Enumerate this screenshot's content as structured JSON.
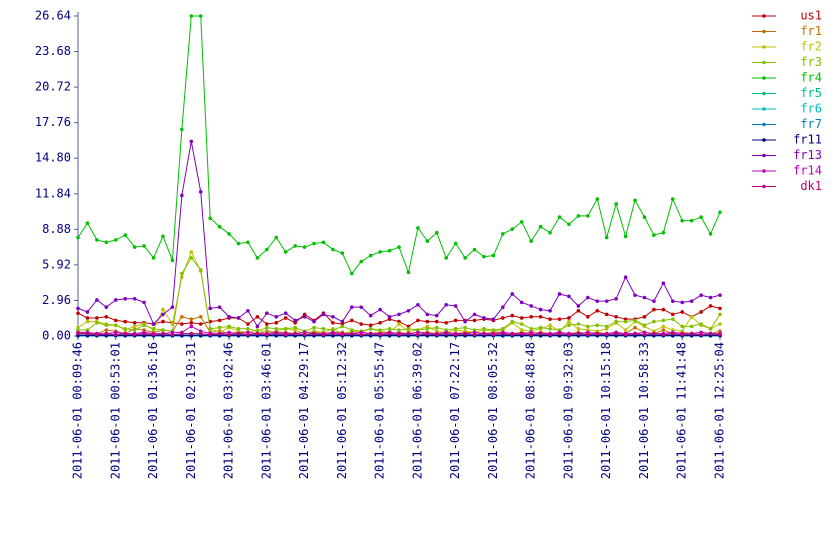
{
  "chart_data": {
    "type": "line",
    "categories": [
      "2011-06-01 00:09:46",
      null,
      null,
      null,
      "2011-06-01 00:53:01",
      null,
      null,
      null,
      "2011-06-01 01:36:16",
      null,
      null,
      null,
      "2011-06-01 02:19:31",
      null,
      null,
      null,
      "2011-06-01 03:02:46",
      null,
      null,
      null,
      "2011-06-01 03:46:01",
      null,
      null,
      null,
      "2011-06-01 04:29:17",
      null,
      null,
      null,
      "2011-06-01 05:12:32",
      null,
      null,
      null,
      "2011-06-01 05:55:47",
      null,
      null,
      null,
      "2011-06-01 06:39:02",
      null,
      null,
      null,
      "2011-06-01 07:22:17",
      null,
      null,
      null,
      "2011-06-01 08:05:32",
      null,
      null,
      null,
      "2011-06-01 08:48:48",
      null,
      null,
      null,
      "2011-06-01 09:32:03",
      null,
      null,
      null,
      "2011-06-01 10:15:18",
      null,
      null,
      null,
      "2011-06-01 10:58:33",
      null,
      null,
      null,
      "2011-06-01 11:41:48",
      null,
      null,
      null,
      "2011-06-01 12:25:04"
    ],
    "ylim": [
      0,
      26.64
    ],
    "yticks": [
      {
        "value": 0,
        "label": "0.00"
      },
      2.96,
      5.92,
      8.88,
      11.84,
      {
        "value": 14.8,
        "label": "14.80"
      },
      17.76,
      20.72,
      23.68,
      26.64
    ],
    "grid": false,
    "legend": "right",
    "series": [
      {
        "name": "us1",
        "color": "#c00000",
        "values": [
          1.9,
          1.5,
          1.5,
          1.6,
          1.3,
          1.2,
          1.1,
          1.1,
          1.0,
          1.2,
          1.1,
          1.0,
          1.1,
          1.0,
          1.2,
          1.3,
          1.5,
          1.5,
          1.0,
          1.6,
          1.0,
          1.1,
          1.5,
          1.1,
          1.8,
          1.3,
          1.9,
          1.1,
          1.0,
          1.3,
          1.0,
          0.9,
          1.1,
          1.4,
          1.2,
          0.8,
          1.3,
          1.2,
          1.2,
          1.1,
          1.3,
          1.3,
          1.3,
          1.4,
          1.3,
          1.5,
          1.7,
          1.5,
          1.6,
          1.6,
          1.4,
          1.4,
          1.5,
          2.1,
          1.6,
          2.1,
          1.8,
          1.6,
          1.4,
          1.4,
          1.6,
          2.2,
          2.2,
          1.8,
          2.0,
          1.6,
          2.0,
          2.5,
          2.3
        ]
      },
      {
        "name": "fr1",
        "color": "#c07000",
        "values": [
          0.3,
          0.2,
          0.2,
          0.5,
          0.4,
          0.2,
          0.6,
          0.5,
          0.3,
          0.5,
          0.4,
          1.6,
          1.4,
          1.6,
          0.3,
          0.4,
          0.2,
          0.3,
          0.3,
          0.2,
          0.4,
          0.3,
          0.3,
          0.2,
          0.3,
          0.3,
          0.2,
          0.3,
          0.3,
          0.2,
          0.3,
          0.2,
          0.3,
          0.2,
          0.3,
          0.2,
          0.3,
          0.3,
          0.2,
          0.3,
          0.2,
          0.3,
          0.3,
          0.2,
          0.3,
          0.3,
          0.2,
          0.3,
          0.2,
          0.3,
          0.2,
          0.3,
          0.2,
          0.3,
          0.2,
          0.3,
          0.2,
          0.3,
          0.2,
          0.7,
          0.3,
          0.2,
          0.5,
          0.2,
          0.3,
          0.2,
          0.3,
          0.2,
          0.4
        ]
      },
      {
        "name": "fr2",
        "color": "#c0c000",
        "values": [
          0.7,
          1.2,
          1.2,
          1.0,
          0.9,
          0.5,
          0.8,
          1.0,
          0.5,
          2.2,
          1.0,
          4.9,
          7.0,
          5.4,
          0.6,
          0.3,
          0.7,
          0.4,
          0.3,
          0.5,
          0.3,
          0.4,
          0.6,
          0.5,
          0.2,
          0.4,
          0.3,
          0.6,
          0.2,
          0.4,
          0.3,
          0.6,
          0.4,
          0.3,
          1.0,
          0.4,
          0.5,
          0.8,
          0.4,
          0.3,
          0.5,
          0.4,
          0.3,
          0.5,
          0.4,
          0.5,
          1.1,
          0.5,
          0.4,
          0.6,
          0.9,
          0.4,
          1.2,
          0.6,
          0.5,
          0.4,
          0.6,
          1.1,
          0.5,
          1.2,
          0.8,
          0.4,
          0.8,
          0.5,
          0.4,
          1.6,
          0.9,
          0.6,
          1.0
        ]
      },
      {
        "name": "fr3",
        "color": "#80c000",
        "values": [
          0.5,
          0.5,
          1.1,
          0.9,
          0.9,
          0.6,
          0.5,
          0.9,
          0.6,
          0.5,
          0.4,
          5.2,
          6.5,
          5.5,
          0.6,
          0.7,
          0.8,
          0.6,
          0.6,
          0.4,
          0.7,
          0.6,
          0.6,
          0.7,
          0.4,
          0.7,
          0.6,
          0.5,
          0.8,
          0.5,
          0.4,
          0.6,
          0.5,
          0.6,
          0.5,
          0.6,
          0.5,
          0.6,
          0.7,
          0.5,
          0.6,
          0.7,
          0.5,
          0.6,
          0.5,
          0.6,
          1.2,
          1.0,
          0.6,
          0.7,
          0.6,
          0.5,
          0.9,
          1.0,
          0.8,
          0.9,
          0.8,
          1.2,
          1.2,
          1.3,
          0.9,
          1.2,
          1.3,
          1.4,
          0.8,
          0.8,
          1.0,
          0.6,
          1.8
        ]
      },
      {
        "name": "fr4",
        "color": "#00c000",
        "values": [
          8.2,
          9.4,
          8.0,
          7.8,
          8.0,
          8.4,
          7.4,
          7.5,
          6.5,
          8.3,
          6.3,
          17.2,
          26.64,
          26.64,
          9.8,
          9.1,
          8.5,
          7.7,
          7.8,
          6.5,
          7.2,
          8.2,
          7.0,
          7.5,
          7.4,
          7.7,
          7.8,
          7.2,
          6.9,
          5.2,
          6.2,
          6.7,
          7.0,
          7.1,
          7.4,
          5.3,
          9.0,
          7.9,
          8.6,
          6.5,
          7.7,
          6.5,
          7.2,
          6.6,
          6.7,
          8.5,
          8.9,
          9.5,
          7.9,
          9.1,
          8.6,
          9.9,
          9.3,
          10.0,
          10.0,
          11.4,
          8.2,
          11.0,
          8.3,
          11.3,
          9.9,
          8.4,
          8.6,
          11.4,
          9.6,
          9.6,
          9.9,
          8.5,
          10.3
        ]
      },
      {
        "name": "fr5",
        "color": "#00c080",
        "values": [
          0.1,
          0.1,
          0.1,
          0.1,
          0.1,
          0.1,
          0.1,
          0.1,
          0.1,
          0.1,
          0.1,
          0.1,
          0.1,
          0.1,
          0.1,
          0.1,
          0.1,
          0.1,
          0.1,
          0.1,
          0.1,
          0.1,
          0.1,
          0.1,
          0.1,
          0.1,
          0.1,
          0.1,
          0.1,
          0.1,
          0.1,
          0.1,
          0.1,
          0.1,
          0.1,
          0.1,
          0.1,
          0.1,
          0.1,
          0.1,
          0.1,
          0.1,
          0.1,
          0.1,
          0.1,
          0.1,
          0.1,
          0.1,
          0.1,
          0.1,
          0.1,
          0.1,
          0.1,
          0.1,
          0.1,
          0.1,
          0.1,
          0.1,
          0.1,
          0.1,
          0.1,
          0.1,
          0.1,
          0.1,
          0.1,
          0.1,
          0.1,
          0.1,
          0.1
        ]
      },
      {
        "name": "fr6",
        "color": "#00c0c0",
        "values": [
          0.05,
          0.05,
          0.05,
          0.05,
          0.05,
          0.05,
          0.05,
          0.05,
          0.05,
          0.05,
          0.05,
          0.05,
          0.05,
          0.05,
          0.05,
          0.05,
          0.05,
          0.05,
          0.05,
          0.05,
          0.05,
          0.05,
          0.05,
          0.05,
          0.05,
          0.05,
          0.05,
          0.05,
          0.05,
          0.05,
          0.05,
          0.05,
          0.05,
          0.05,
          0.05,
          0.05,
          0.05,
          0.05,
          0.05,
          0.05,
          0.05,
          0.05,
          0.05,
          0.05,
          0.05,
          0.05,
          0.05,
          0.05,
          0.05,
          0.05,
          0.05,
          0.05,
          0.05,
          0.05,
          0.05,
          0.05,
          0.05,
          0.05,
          0.05,
          0.05,
          0.05,
          0.05,
          0.05,
          0.05,
          0.05,
          0.05,
          0.05,
          0.05,
          0.05
        ]
      },
      {
        "name": "fr7",
        "color": "#0080c0",
        "values": [
          0,
          0,
          0,
          0,
          0,
          0,
          0,
          0,
          0,
          0,
          0,
          0,
          0,
          0,
          0,
          0,
          0,
          0,
          0,
          0,
          0,
          0,
          0,
          0,
          0,
          0,
          0,
          0,
          0,
          0,
          0,
          0,
          0,
          0,
          0,
          0,
          0,
          0,
          0,
          0,
          0,
          0,
          0,
          0,
          0,
          0,
          0,
          0,
          0,
          0,
          0,
          0,
          0,
          0,
          0,
          0,
          0,
          0,
          0,
          0,
          0,
          0,
          0,
          0,
          0,
          0,
          0,
          0,
          0
        ]
      },
      {
        "name": "fr11",
        "color": "#000080",
        "values": [
          0.05,
          0.05,
          0.05,
          0.05,
          0.05,
          0.05,
          0.05,
          0.05,
          0.05,
          0.05,
          0.05,
          0.05,
          0.05,
          0.05,
          0.05,
          0.05,
          0.05,
          0.05,
          0.05,
          0.05,
          0.05,
          0.05,
          0.05,
          0.05,
          0.05,
          0.05,
          0.05,
          0.05,
          0.05,
          0.05,
          0.05,
          0.05,
          0.05,
          0.05,
          0.05,
          0.05,
          0.05,
          0.05,
          0.05,
          0.05,
          0.05,
          0.05,
          0.05,
          0.05,
          0.05,
          0.05,
          0.05,
          0.05,
          0.05,
          0.05,
          0.05,
          0.05,
          0.05,
          0.05,
          0.05,
          0.05,
          0.05,
          0.05,
          0.05,
          0.05,
          0.05,
          0.05,
          0.05,
          0.05,
          0.05,
          0.05,
          0.05,
          0.05,
          0.05
        ]
      },
      {
        "name": "fr13",
        "color": "#8000c0",
        "values": [
          2.3,
          2.0,
          3.0,
          2.4,
          3.0,
          3.1,
          3.1,
          2.8,
          1.0,
          1.8,
          2.4,
          11.7,
          16.2,
          12.0,
          2.3,
          2.4,
          1.6,
          1.5,
          2.1,
          0.8,
          1.9,
          1.6,
          1.9,
          1.3,
          1.6,
          1.2,
          1.8,
          1.6,
          1.2,
          2.4,
          2.4,
          1.7,
          2.2,
          1.6,
          1.8,
          2.1,
          2.6,
          1.8,
          1.7,
          2.6,
          2.5,
          1.2,
          1.8,
          1.5,
          1.4,
          2.4,
          3.5,
          2.8,
          2.5,
          2.2,
          2.1,
          3.5,
          3.3,
          2.5,
          3.2,
          2.9,
          2.9,
          3.1,
          4.9,
          3.4,
          3.2,
          2.9,
          4.4,
          2.9,
          2.8,
          2.9,
          3.4,
          3.2,
          3.4
        ]
      },
      {
        "name": "fr14",
        "color": "#c000c0",
        "values": [
          0.3,
          0.3,
          0.2,
          0.2,
          0.3,
          0.2,
          0.2,
          0.3,
          0.2,
          0.2,
          0.3,
          0.3,
          0.8,
          0.4,
          0.2,
          0.2,
          0.3,
          0.2,
          0.3,
          0.2,
          0.2,
          0.3,
          0.2,
          0.2,
          0.3,
          0.2,
          0.2,
          0.3,
          0.2,
          0.2,
          0.3,
          0.2,
          0.2,
          0.3,
          0.2,
          0.2,
          0.3,
          0.2,
          0.2,
          0.3,
          0.2,
          0.2,
          0.3,
          0.2,
          0.2,
          0.3,
          0.2,
          0.2,
          0.3,
          0.2,
          0.2,
          0.3,
          0.2,
          0.2,
          0.3,
          0.2,
          0.2,
          0.3,
          0.2,
          0.2,
          0.3,
          0.2,
          0.2,
          0.3,
          0.2,
          0.2,
          0.3,
          0.2,
          0.2
        ]
      },
      {
        "name": "dk1",
        "color": "#c00080",
        "values": [
          0.2,
          0.2,
          0.1,
          0.2,
          0.1,
          0.2,
          0.1,
          0.2,
          0.1,
          0.2,
          0.1,
          0.2,
          0.2,
          0.2,
          0.1,
          0.2,
          0.1,
          0.2,
          0.1,
          0.2,
          0.1,
          0.2,
          0.1,
          0.2,
          0.1,
          0.2,
          0.1,
          0.2,
          0.1,
          0.2,
          0.1,
          0.2,
          0.1,
          0.2,
          0.1,
          0.2,
          0.1,
          0.2,
          0.1,
          0.2,
          0.1,
          0.2,
          0.1,
          0.2,
          0.1,
          0.2,
          0.1,
          0.2,
          0.1,
          0.2,
          0.1,
          0.2,
          0.1,
          0.2,
          0.1,
          0.2,
          0.1,
          0.2,
          0.1,
          0.2,
          0.1,
          0.2,
          0.1,
          0.2,
          0.1,
          0.2,
          0.1,
          0.2,
          0.1
        ]
      }
    ]
  }
}
